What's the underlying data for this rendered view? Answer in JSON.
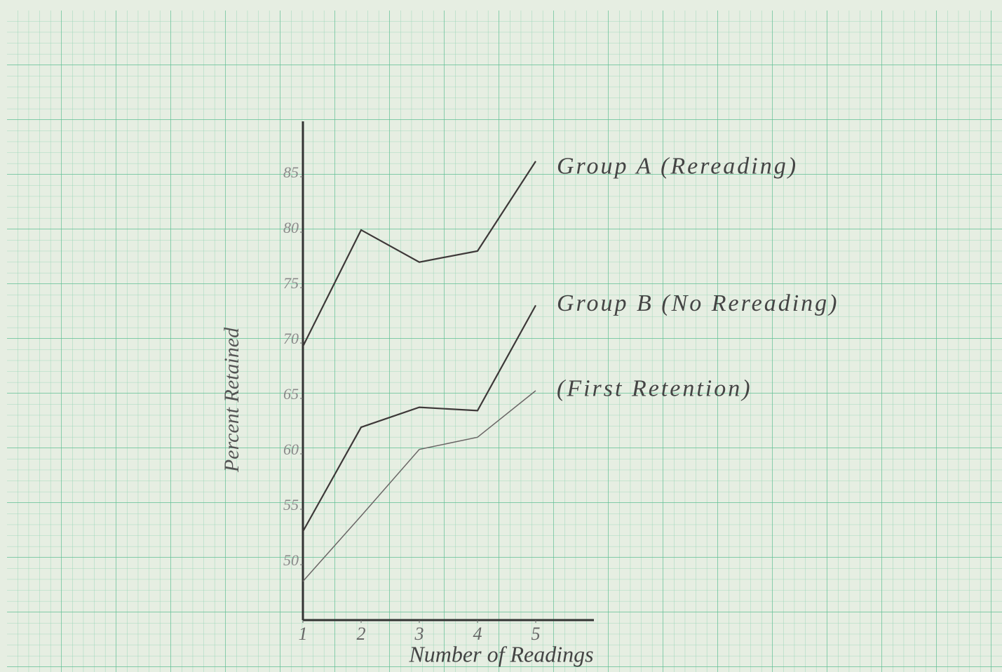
{
  "chart_data": {
    "type": "line",
    "x_label": "Number of Readings",
    "y_label": "Percent Retained",
    "x": [
      1,
      2,
      3,
      4,
      5
    ],
    "series": [
      {
        "name": "Group A (Rereading)",
        "color": "#3d3838",
        "values": [
          69.7,
          80.2,
          77.3,
          78.3,
          86.4
        ]
      },
      {
        "name": "Group B (No Rereading)",
        "color": "#3d3838",
        "values": [
          53,
          62.4,
          64.2,
          63.9,
          73.4
        ]
      },
      {
        "name": "(First Retention)",
        "color": "#6a6666",
        "values": [
          48.5,
          54.4,
          60.4,
          61.5,
          65.7
        ]
      }
    ],
    "xlim": [
      1,
      6
    ],
    "xticks": [
      1,
      2,
      3,
      4,
      5
    ],
    "ylim": [
      45,
      90
    ],
    "yticks": [
      50,
      55,
      60,
      65,
      70,
      75,
      80,
      85
    ]
  }
}
